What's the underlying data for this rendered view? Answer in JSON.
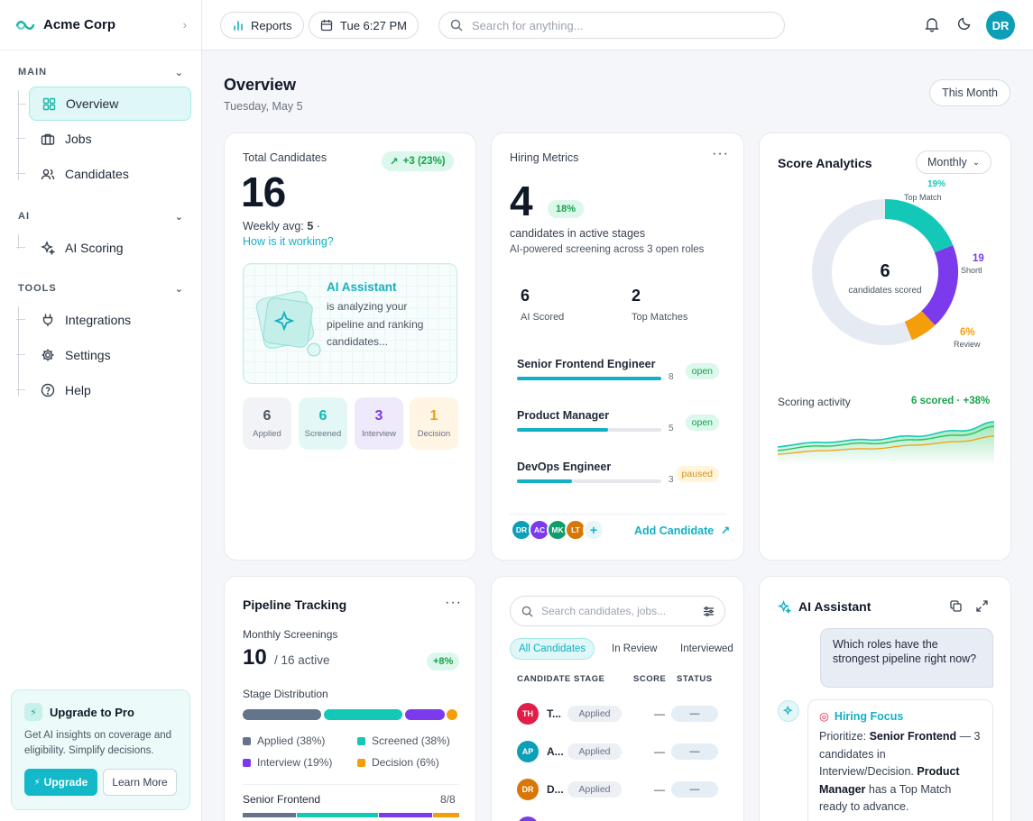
{
  "brand": {
    "name": "Acme Corp"
  },
  "nav": {
    "main_label": "MAIN",
    "ai_label": "AI",
    "tools_label": "TOOLS",
    "main": [
      {
        "label": "Overview",
        "icon": "grid-icon"
      },
      {
        "label": "Jobs",
        "icon": "briefcase-icon"
      },
      {
        "label": "Candidates",
        "icon": "users-icon"
      }
    ],
    "ai": [
      {
        "label": "AI Scoring",
        "icon": "sparkles-icon"
      }
    ],
    "tools": [
      {
        "label": "Integrations",
        "icon": "plug-icon"
      },
      {
        "label": "Settings",
        "icon": "gear-icon"
      },
      {
        "label": "Help",
        "icon": "help-icon"
      }
    ]
  },
  "upgrade": {
    "title": "Upgrade to Pro",
    "text": "Get AI insights on coverage and eligibility. Simplify decisions.",
    "upgrade_btn": "Upgrade",
    "learn_btn": "Learn More"
  },
  "topbar": {
    "reports": "Reports",
    "time": "Tue 6:27 PM",
    "search_placeholder": "Search for anything...",
    "avatar": "DR"
  },
  "page": {
    "title": "Overview",
    "date": "Tuesday, May 5",
    "range": "This Month"
  },
  "total": {
    "label": "Total Candidates",
    "value": "16",
    "change": "+3 (23%)",
    "weekly_label": "Weekly avg:",
    "weekly_value": "5",
    "weekly_sep": "·",
    "link": "How is it working?",
    "ai_title": "AI Assistant",
    "ai_text": "is analyzing your pipeline and ranking candidates...",
    "stages": [
      {
        "n": "6",
        "l": "Applied",
        "color": "#4b5563",
        "bg": "#f1f3f6"
      },
      {
        "n": "6",
        "l": "Screened",
        "color": "#13b8b0",
        "bg": "#e3f8f6"
      },
      {
        "n": "3",
        "l": "Interview",
        "color": "#7c3aed",
        "bg": "#efe9fc"
      },
      {
        "n": "1",
        "l": "Decision",
        "color": "#f59e0b",
        "bg": "#fff5e4"
      }
    ]
  },
  "metrics": {
    "title": "Hiring Metrics",
    "value": "4",
    "badge": "18%",
    "desc": "candidates in active stages",
    "sub": "AI-powered screening across 3 open roles",
    "ai_scored_value": "6",
    "ai_scored_label": "AI Scored",
    "top_value": "2",
    "top_label": "Top Matches",
    "roles": [
      {
        "name": "Senior Frontend Engineer",
        "count": "8",
        "status": "open",
        "fill": 1.0
      },
      {
        "name": "Product Manager",
        "count": "5",
        "status": "open",
        "fill": 0.63
      },
      {
        "name": "DevOps Engineer",
        "count": "3",
        "status": "paused",
        "fill": 0.38
      }
    ],
    "avatars": [
      "DR",
      "AC",
      "MK",
      "LT"
    ],
    "add": "Add Candidate"
  },
  "score": {
    "title": "Score Analytics",
    "period": "Monthly",
    "center_value": "6",
    "center_label": "candidates scored",
    "top_pct": "19%",
    "top_label": "Top Match",
    "short_pct": "19",
    "short_label": "Shortl",
    "review_pct": "6%",
    "review_label": "Review",
    "activity_label": "Scoring activity",
    "activity_value": "6 scored · +38%"
  },
  "chart_data": {
    "type": "pie",
    "slices": [
      {
        "label": "Top Match",
        "value": 19,
        "color": "#14c8b8"
      },
      {
        "label": "Shortlisted",
        "value": 19,
        "color": "#7c3aed"
      },
      {
        "label": "Review",
        "value": 6,
        "color": "#f59e0b"
      },
      {
        "label": "Other",
        "value": 56,
        "color": "#e6eaf3"
      }
    ]
  },
  "pipeline": {
    "title": "Pipeline Tracking",
    "monthly_label": "Monthly Screenings",
    "value": "10",
    "active": "/ 16 active",
    "badge": "+8%",
    "dist_label": "Stage Distribution",
    "legend": [
      {
        "label": "Applied (38%)",
        "color": "#64748b"
      },
      {
        "label": "Screened (38%)",
        "color": "#14c8b8"
      },
      {
        "label": "Interview (19%)",
        "color": "#7c3aed"
      },
      {
        "label": "Decision (6%)",
        "color": "#f59e0b"
      }
    ],
    "role": "Senior Frontend",
    "role_count": "8/8"
  },
  "table": {
    "search_placeholder": "Search candidates, jobs...",
    "tabs": [
      "All Candidates",
      "In Review",
      "Interviewed"
    ],
    "headers": [
      "CANDIDATE",
      "STAGE",
      "SCORE",
      "STATUS"
    ],
    "rows": [
      {
        "ini": "TH",
        "name": "T...",
        "stage": "Applied",
        "score": "—",
        "status": "—",
        "color": "#e11d48"
      },
      {
        "ini": "AP",
        "name": "A...",
        "stage": "Applied",
        "score": "—",
        "status": "—",
        "color": "#0e9fb8"
      },
      {
        "ini": "DR",
        "name": "D...",
        "stage": "Applied",
        "score": "—",
        "status": "—",
        "color": "#d97706"
      }
    ]
  },
  "assistant": {
    "title": "AI Assistant",
    "question": "Which roles have the strongest pipeline right now?",
    "focus": "Hiring Focus",
    "ans_a": "Prioritize: ",
    "ans_b": "Senior Frontend",
    "ans_c": " — 3 candidates in Interview/Decision. ",
    "ans_d": "Product Manager",
    "ans_e": " has a Top Match ready to advance."
  }
}
